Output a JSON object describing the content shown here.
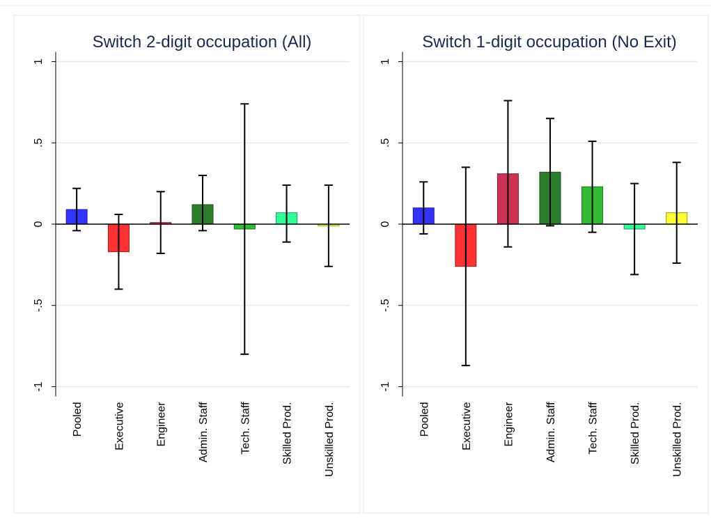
{
  "chart_data": [
    {
      "type": "bar",
      "title": "Switch 2-digit occupation (All)",
      "categories": [
        "Pooled",
        "Executive",
        "Engineer",
        "Admin. Staff",
        "Tech. Staff",
        "Skilled Prod.",
        "Unskilled Prod."
      ],
      "values": [
        0.09,
        -0.17,
        0.01,
        0.12,
        -0.03,
        0.07,
        -0.01
      ],
      "ci_low": [
        -0.04,
        -0.4,
        -0.18,
        -0.04,
        -0.8,
        -0.11,
        -0.26
      ],
      "ci_high": [
        0.22,
        0.06,
        0.2,
        0.3,
        0.74,
        0.24,
        0.24
      ],
      "colors": [
        "#3333ff",
        "#ff3333",
        "#cc3355",
        "#2e7d2e",
        "#33bb33",
        "#33ff99",
        "#ffff33"
      ],
      "ylim": [
        -1.06,
        1.06
      ],
      "yticks": [
        -1,
        {
          "value": -0.5,
          "label": "-.5"
        },
        0,
        {
          "value": 0.5,
          "label": ".5"
        },
        1
      ],
      "grid": true
    },
    {
      "type": "bar",
      "title": "Switch 1-digit occupation (No Exit)",
      "categories": [
        "Pooled",
        "Executive",
        "Engineer",
        "Admin. Staff",
        "Tech. Staff",
        "Skilled Prod.",
        "Unskilled Prod."
      ],
      "values": [
        0.1,
        -0.26,
        0.31,
        0.32,
        0.23,
        -0.03,
        0.07
      ],
      "ci_low": [
        -0.06,
        -0.87,
        -0.14,
        -0.01,
        -0.05,
        -0.31,
        -0.24
      ],
      "ci_high": [
        0.26,
        0.35,
        0.76,
        0.65,
        0.51,
        0.25,
        0.38
      ],
      "colors": [
        "#3333ff",
        "#ff3333",
        "#cc3355",
        "#2e7d2e",
        "#33bb33",
        "#33ff99",
        "#ffff33"
      ],
      "ylim": [
        -1.06,
        1.06
      ],
      "yticks": [
        -1,
        {
          "value": -0.5,
          "label": "-.5"
        },
        0,
        {
          "value": 0.5,
          "label": ".5"
        },
        1
      ],
      "grid": true
    }
  ]
}
